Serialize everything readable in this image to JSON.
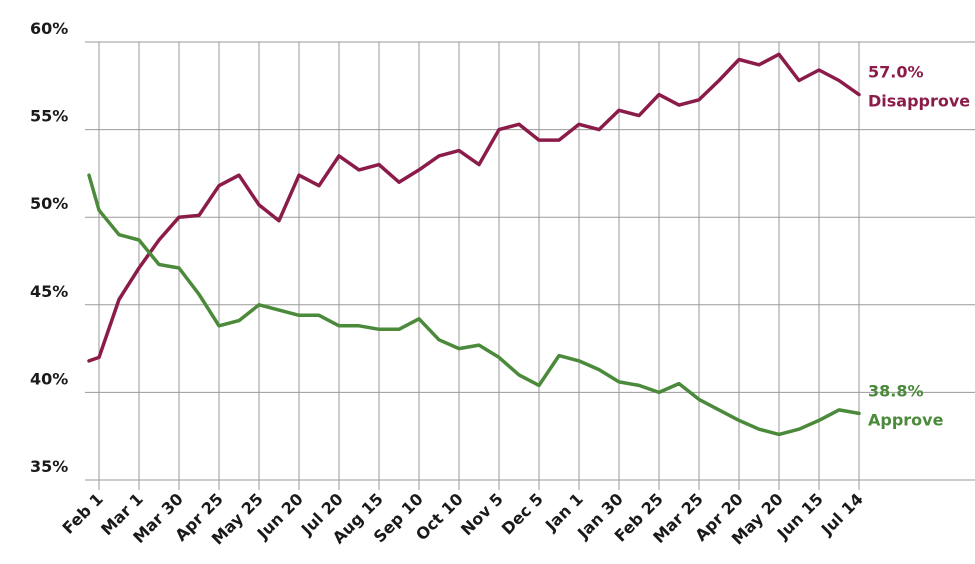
{
  "chart_data": {
    "type": "line",
    "x": [
      -0.25,
      0,
      0.5,
      1,
      1.5,
      2,
      2.5,
      3,
      3.5,
      4,
      4.5,
      5,
      5.5,
      6,
      6.5,
      7,
      7.5,
      8,
      8.5,
      9,
      9.5,
      10,
      10.5,
      11,
      11.5,
      12,
      12.5,
      13,
      13.5,
      14,
      14.5,
      15,
      15.5,
      16,
      16.5,
      17,
      17.5,
      18,
      18.5,
      19
    ],
    "series": [
      {
        "name": "Disapprove",
        "color": "#8b1c4a",
        "end_label": "57.0%",
        "values": [
          41.8,
          42.0,
          45.3,
          47.1,
          48.7,
          50.0,
          50.1,
          51.8,
          52.4,
          50.7,
          49.8,
          52.4,
          51.8,
          53.5,
          52.7,
          53.0,
          52.0,
          52.7,
          53.5,
          53.8,
          53.0,
          55.0,
          55.3,
          54.4,
          54.4,
          55.3,
          55.0,
          56.1,
          55.8,
          57.0,
          56.4,
          56.7,
          57.8,
          59.0,
          58.7,
          59.3,
          57.8,
          58.4,
          57.8,
          57.0
        ]
      },
      {
        "name": "Approve",
        "color": "#4a8a3a",
        "end_label": "38.8%",
        "values": [
          52.4,
          50.4,
          49.0,
          48.7,
          47.3,
          47.1,
          45.6,
          43.8,
          44.1,
          45.0,
          44.7,
          44.4,
          44.4,
          43.8,
          43.8,
          43.6,
          43.6,
          44.2,
          43.0,
          42.5,
          42.7,
          42.0,
          41.0,
          40.4,
          42.1,
          41.8,
          41.3,
          40.6,
          40.4,
          40.0,
          40.5,
          39.6,
          39.0,
          38.4,
          37.9,
          37.6,
          37.9,
          38.4,
          39.0,
          38.8
        ]
      }
    ],
    "xlim": [
      -1,
      21.9
    ],
    "xticks": [
      {
        "value": 0,
        "label": "Feb 1"
      },
      {
        "value": 1,
        "label": "Mar 1"
      },
      {
        "value": 2,
        "label": "Mar 30"
      },
      {
        "value": 3,
        "label": "Apr 25"
      },
      {
        "value": 4,
        "label": "May 25"
      },
      {
        "value": 5,
        "label": "Jun 20"
      },
      {
        "value": 6,
        "label": "Jul 20"
      },
      {
        "value": 7,
        "label": "Aug 15"
      },
      {
        "value": 8,
        "label": "Sep 10"
      },
      {
        "value": 9,
        "label": "Oct 10"
      },
      {
        "value": 10,
        "label": "Nov 5"
      },
      {
        "value": 11,
        "label": "Dec 5"
      },
      {
        "value": 12,
        "label": "Jan 1"
      },
      {
        "value": 13,
        "label": "Jan 30"
      },
      {
        "value": 14,
        "label": "Feb 25"
      },
      {
        "value": 15,
        "label": "Mar 25"
      },
      {
        "value": 16,
        "label": "Apr 20"
      },
      {
        "value": 17,
        "label": "May 20"
      },
      {
        "value": 18,
        "label": "Jun 15"
      },
      {
        "value": 19,
        "label": "Jul 14"
      }
    ],
    "ylim": [
      35,
      60
    ],
    "yticks": [
      {
        "value": 35,
        "label": "35%"
      },
      {
        "value": 40,
        "label": "40%"
      },
      {
        "value": 45,
        "label": "45%"
      },
      {
        "value": 50,
        "label": "50%"
      },
      {
        "value": 55,
        "label": "55%"
      },
      {
        "value": 60,
        "label": "60%"
      }
    ],
    "grid": true
  }
}
